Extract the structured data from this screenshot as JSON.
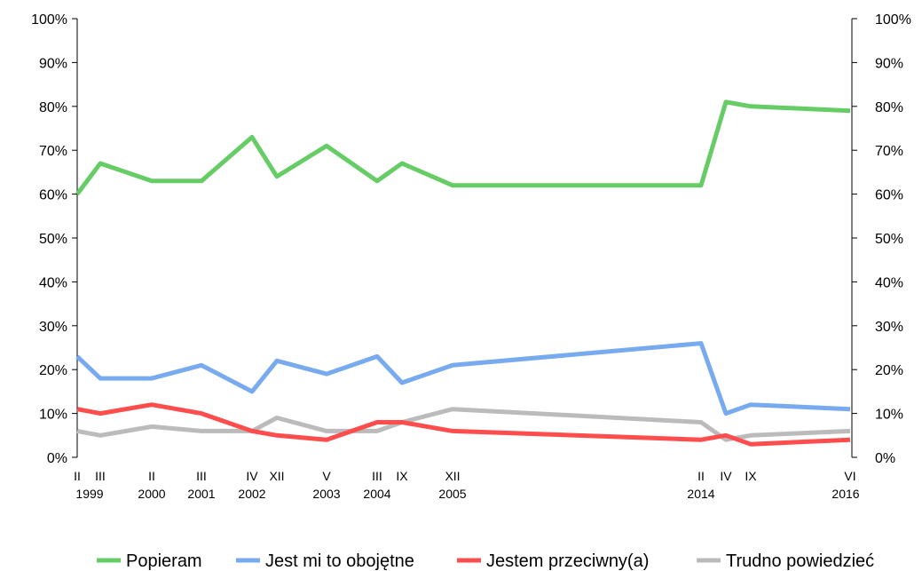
{
  "chart_data": {
    "type": "line",
    "y_ticks": [
      "0%",
      "10%",
      "20%",
      "30%",
      "40%",
      "50%",
      "60%",
      "70%",
      "80%",
      "90%",
      "100%"
    ],
    "ylim": [
      0,
      100
    ],
    "grid": false,
    "legend_position": "bottom",
    "x_labels": [
      {
        "month": "II",
        "year": "1999"
      },
      {
        "month": "III",
        "year": ""
      },
      {
        "month": "II",
        "year": "2000"
      },
      {
        "month": "III",
        "year": "2001"
      },
      {
        "month": "IV",
        "year": "2002"
      },
      {
        "month": "XII",
        "year": ""
      },
      {
        "month": "V",
        "year": "2003"
      },
      {
        "month": "III",
        "year": "2004"
      },
      {
        "month": "IX",
        "year": ""
      },
      {
        "month": "XII",
        "year": "2005"
      },
      {
        "month": "II",
        "year": "2014"
      },
      {
        "month": "IV",
        "year": ""
      },
      {
        "month": "IX",
        "year": ""
      },
      {
        "month": "VI",
        "year": "2016"
      }
    ],
    "series": [
      {
        "name": "Popieram",
        "color": "#66cc66",
        "values": [
          60,
          67,
          63,
          63,
          73,
          64,
          71,
          63,
          67,
          62,
          62,
          81,
          80,
          79
        ]
      },
      {
        "name": "Jest mi to obojętne",
        "color": "#77aaee",
        "values": [
          23,
          18,
          18,
          21,
          15,
          22,
          19,
          23,
          17,
          21,
          26,
          10,
          12,
          11
        ]
      },
      {
        "name": "Jestem przeciwny(a)",
        "color": "#ff4d4d",
        "values": [
          11,
          10,
          12,
          10,
          6,
          5,
          4,
          8,
          8,
          6,
          4,
          5,
          3,
          4
        ]
      },
      {
        "name": "Trudno powiedzieć",
        "color": "#bbbbbb",
        "values": [
          6,
          5,
          7,
          6,
          6,
          9,
          6,
          6,
          8,
          11,
          8,
          4,
          5,
          6
        ]
      }
    ]
  }
}
